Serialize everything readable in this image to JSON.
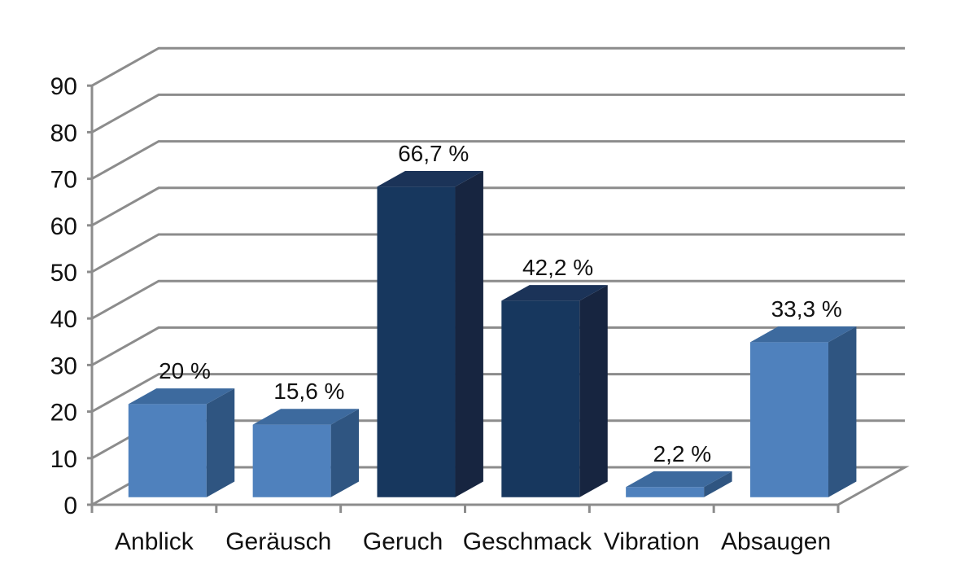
{
  "chart_data": {
    "type": "bar",
    "categories": [
      "Anblick",
      "Geräusch",
      "Geruch",
      "Geschmack",
      "Vibration",
      "Absaugen"
    ],
    "values": [
      20,
      15.6,
      66.7,
      42.2,
      2.2,
      33.3
    ],
    "data_labels": [
      "20 %",
      "15,6 %",
      "66,7 %",
      "42,2 %",
      "2,2 %",
      "33,3 %"
    ],
    "y_ticks": [
      "0",
      "10",
      "20",
      "30",
      "40",
      "50",
      "60",
      "70",
      "80",
      "90"
    ],
    "ylim": [
      0,
      90
    ],
    "grid": true,
    "style": "3d-column",
    "colors": {
      "light_front": "#4f81bd",
      "light_top": "#3d6a9e",
      "light_side": "#2f5581",
      "dark_front": "#17375e",
      "dark_top": "#1b3358",
      "dark_side": "#172540",
      "grid": "#8c8c8c",
      "axis": "#8c8c8c"
    },
    "bar_color_groups": [
      "light",
      "light",
      "dark",
      "dark",
      "light",
      "light"
    ]
  }
}
